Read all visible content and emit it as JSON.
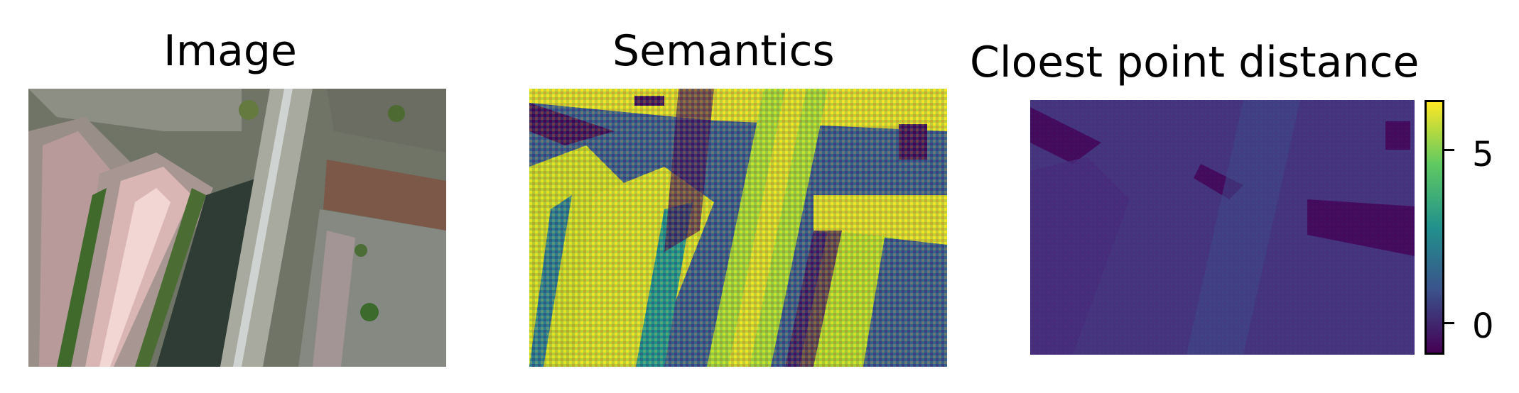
{
  "panels": [
    {
      "title": "Image",
      "content": "aerial photo of buildings with solar panels, trees, road and parking"
    },
    {
      "title": "Semantics",
      "content": "semantic map rendered in viridis colormap"
    },
    {
      "title": "Cloest point distance",
      "content": "distance map rendered in viridis colormap"
    }
  ],
  "colorbar": {
    "colormap": "viridis",
    "ticks": [
      "5",
      "0"
    ],
    "colors": [
      "#fde725",
      "#5ec962",
      "#21918c",
      "#3b528b",
      "#440154"
    ]
  }
}
